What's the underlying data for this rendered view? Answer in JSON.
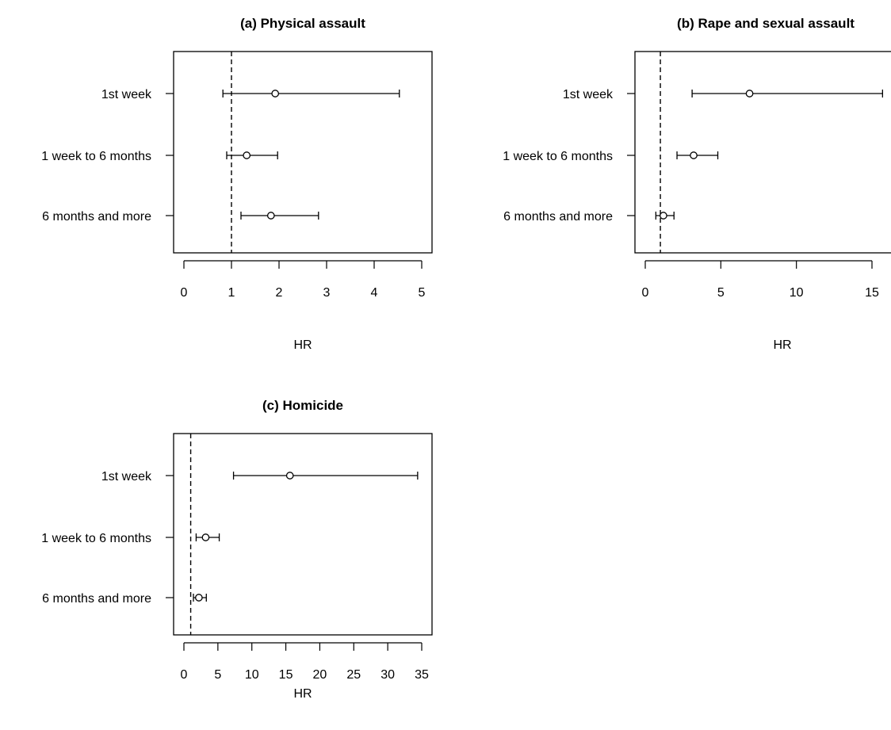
{
  "chart_data": [
    {
      "type": "forest",
      "title": "(a) Physical assault",
      "xlabel": "HR",
      "xlim": [
        0,
        5
      ],
      "xticks": [
        "0",
        "1",
        "2",
        "3",
        "4",
        "5"
      ],
      "reference_line": 1,
      "categories": [
        "1st week",
        "1 week to 6 months",
        "6 months and more"
      ],
      "estimate": [
        1.92,
        1.32,
        1.83
      ],
      "lower": [
        0.82,
        0.9,
        1.2
      ],
      "upper": [
        4.53,
        1.97,
        2.83
      ]
    },
    {
      "type": "forest",
      "title": "(b) Rape and sexual assault",
      "xlabel": "HR",
      "xlim": [
        0,
        15
      ],
      "xticks": [
        "0",
        "5",
        "10",
        "15"
      ],
      "reference_line": 1,
      "categories": [
        "1st week",
        "1 week to 6 months",
        "6 months and more"
      ],
      "estimate": [
        6.9,
        3.2,
        1.2
      ],
      "lower": [
        3.1,
        2.1,
        0.7
      ],
      "upper": [
        15.7,
        4.8,
        1.9
      ]
    },
    {
      "type": "forest",
      "title": "(c) Homicide",
      "xlabel": "HR",
      "xlim": [
        0,
        35
      ],
      "xticks": [
        "0",
        "5",
        "10",
        "15",
        "20",
        "25",
        "30",
        "35"
      ],
      "reference_line": 1,
      "categories": [
        "1st week",
        "1 week to 6 months",
        "6 months and more"
      ],
      "estimate": [
        15.6,
        3.2,
        2.2
      ],
      "lower": [
        7.3,
        1.8,
        1.4
      ],
      "upper": [
        34.4,
        5.2,
        3.3
      ]
    }
  ]
}
